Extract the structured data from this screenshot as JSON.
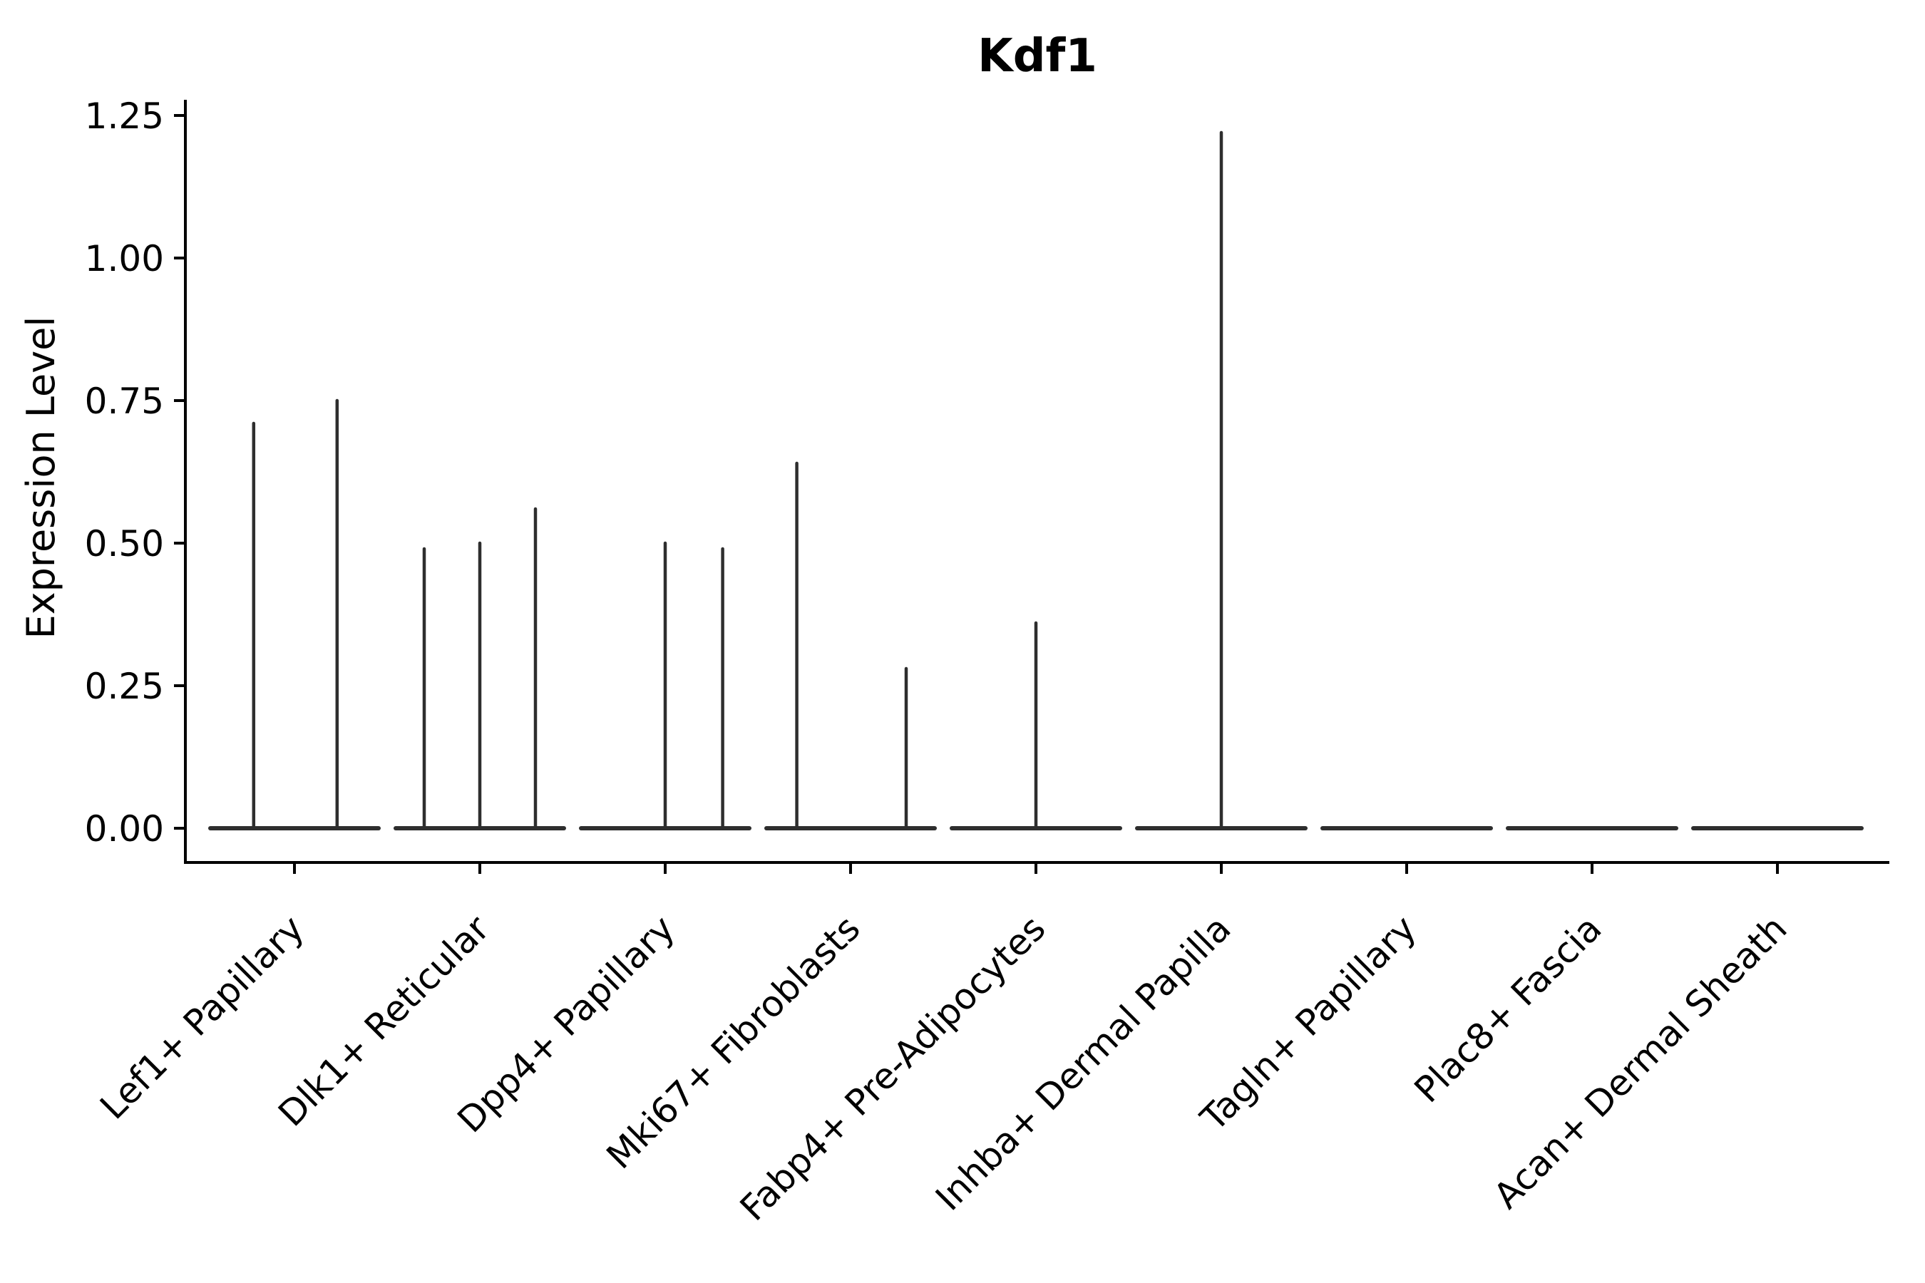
{
  "figure": {
    "background": "#ffffff"
  },
  "chart_data": {
    "type": "violin",
    "title": "Kdf1",
    "xlabel": "",
    "ylabel": "Expression Level",
    "ylim": [
      0,
      1.25
    ],
    "yticks": [
      0.0,
      0.25,
      0.5,
      0.75,
      1.0,
      1.25
    ],
    "ytick_labels": [
      "0.00",
      "0.25",
      "0.50",
      "0.75",
      "1.00",
      "1.25"
    ],
    "grid": false,
    "legend_position": "none",
    "x_tick_rotation_deg": 45,
    "categories": [
      "Lef1+ Papillary",
      "Dlk1+ Reticular",
      "Dpp4+ Papillary",
      "Mki67+ Fibroblasts",
      "Fabp4+ Pre-Adipocytes",
      "Inhba+ Dermal Papilla",
      "Tagln+ Papillary",
      "Plac8+ Fascia",
      "Acan+ Dermal Sheath"
    ],
    "violins": [
      {
        "category": "Lef1+ Papillary",
        "baseline_value": 0,
        "spikes": [
          {
            "sub_offset": -0.22,
            "max_expression": 0.71
          },
          {
            "sub_offset": 0.23,
            "max_expression": 0.75
          }
        ]
      },
      {
        "category": "Dlk1+ Reticular",
        "baseline_value": 0,
        "spikes": [
          {
            "sub_offset": -0.3,
            "max_expression": 0.49
          },
          {
            "sub_offset": 0.0,
            "max_expression": 0.5
          },
          {
            "sub_offset": 0.3,
            "max_expression": 0.56
          }
        ]
      },
      {
        "category": "Dpp4+ Papillary",
        "baseline_value": 0,
        "spikes": [
          {
            "sub_offset": 0.0,
            "max_expression": 0.5
          },
          {
            "sub_offset": 0.31,
            "max_expression": 0.49
          }
        ]
      },
      {
        "category": "Mki67+ Fibroblasts",
        "baseline_value": 0,
        "spikes": [
          {
            "sub_offset": -0.29,
            "max_expression": 0.64
          },
          {
            "sub_offset": 0.3,
            "max_expression": 0.28
          }
        ]
      },
      {
        "category": "Fabp4+ Pre-Adipocytes",
        "baseline_value": 0,
        "spikes": [
          {
            "sub_offset": 0.0,
            "max_expression": 0.36
          }
        ]
      },
      {
        "category": "Inhba+ Dermal Papilla",
        "baseline_value": 0,
        "spikes": [
          {
            "sub_offset": 0.0,
            "max_expression": 1.22
          }
        ]
      },
      {
        "category": "Tagln+ Papillary",
        "baseline_value": 0,
        "spikes": []
      },
      {
        "category": "Plac8+ Fascia",
        "baseline_value": 0,
        "spikes": []
      },
      {
        "category": "Acan+ Dermal Sheath",
        "baseline_value": 0,
        "spikes": []
      }
    ],
    "colors": {
      "violin_stroke": "#2e2e2e",
      "axis": "#000000",
      "text": "#000000",
      "background": "#ffffff"
    }
  }
}
